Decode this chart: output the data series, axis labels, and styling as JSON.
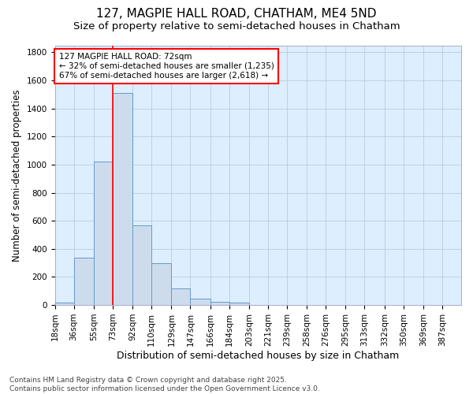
{
  "title1": "127, MAGPIE HALL ROAD, CHATHAM, ME4 5ND",
  "title2": "Size of property relative to semi-detached houses in Chatham",
  "xlabel": "Distribution of semi-detached houses by size in Chatham",
  "ylabel": "Number of semi-detached properties",
  "footer1": "Contains HM Land Registry data © Crown copyright and database right 2025.",
  "footer2": "Contains public sector information licensed under the Open Government Licence v3.0.",
  "bin_labels": [
    "18sqm",
    "36sqm",
    "55sqm",
    "73sqm",
    "92sqm",
    "110sqm",
    "129sqm",
    "147sqm",
    "166sqm",
    "184sqm",
    "203sqm",
    "221sqm",
    "239sqm",
    "258sqm",
    "276sqm",
    "295sqm",
    "313sqm",
    "332sqm",
    "350sqm",
    "369sqm",
    "387sqm"
  ],
  "bin_edges": [
    18,
    36,
    55,
    73,
    92,
    110,
    129,
    147,
    166,
    184,
    203,
    221,
    239,
    258,
    276,
    295,
    313,
    332,
    350,
    369,
    387
  ],
  "bar_heights": [
    20,
    335,
    1020,
    1510,
    565,
    300,
    120,
    45,
    25,
    20,
    0,
    0,
    0,
    0,
    0,
    0,
    0,
    0,
    0,
    0,
    0
  ],
  "bar_color": "#cddcec",
  "bar_edge_color": "#6699cc",
  "red_line_x": 73,
  "annotation_line1": "127 MAGPIE HALL ROAD: 72sqm",
  "annotation_line2": "← 32% of semi-detached houses are smaller (1,235)",
  "annotation_line3": "67% of semi-detached houses are larger (2,618) →",
  "ylim": [
    0,
    1850
  ],
  "yticks": [
    0,
    200,
    400,
    600,
    800,
    1000,
    1200,
    1400,
    1600,
    1800
  ],
  "background_color": "#ffffff",
  "plot_bg_color": "#ddeeff",
  "grid_color": "#bbccdd",
  "title1_fontsize": 11,
  "title2_fontsize": 9.5,
  "xlabel_fontsize": 9,
  "ylabel_fontsize": 8.5,
  "tick_fontsize": 7.5,
  "footer_fontsize": 6.5,
  "annotation_fontsize": 7.5
}
